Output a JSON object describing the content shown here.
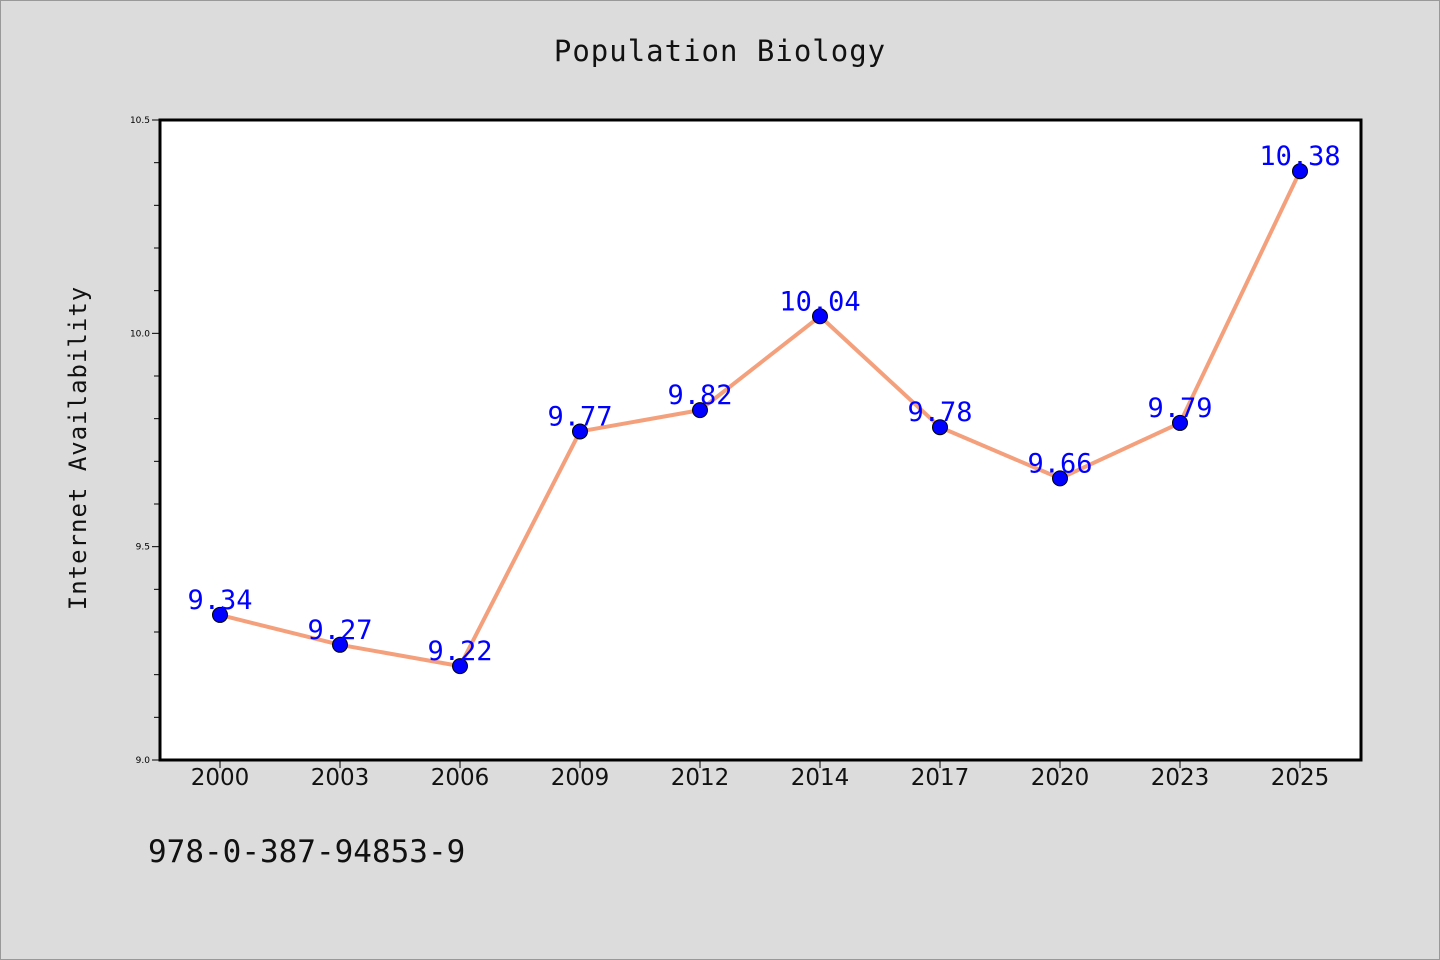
{
  "chart_data": {
    "type": "line",
    "title": "Population Biology",
    "xlabel": "",
    "ylabel": "Internet Availability",
    "categories": [
      "2000",
      "2003",
      "2006",
      "2009",
      "2012",
      "2014",
      "2017",
      "2020",
      "2023",
      "2025"
    ],
    "series": [
      {
        "values": [
          9.34,
          9.27,
          9.22,
          9.77,
          9.82,
          10.04,
          9.78,
          9.66,
          9.79,
          10.38
        ]
      }
    ],
    "data_labels": [
      "9.34",
      "9.27",
      "9.22",
      "9.77",
      "9.82",
      "10.04",
      "9.78",
      "9.66",
      "9.79",
      "10.38"
    ],
    "ylim": [
      9.0,
      10.5
    ],
    "y_ticks": [
      "9.0",
      "9.5",
      "10.0",
      "10.5"
    ],
    "grid": false,
    "line_color": "#f4a07c",
    "marker_color": "#0000ff",
    "label_color": "#0000ff"
  },
  "footnote": "978-0-387-94853-9"
}
